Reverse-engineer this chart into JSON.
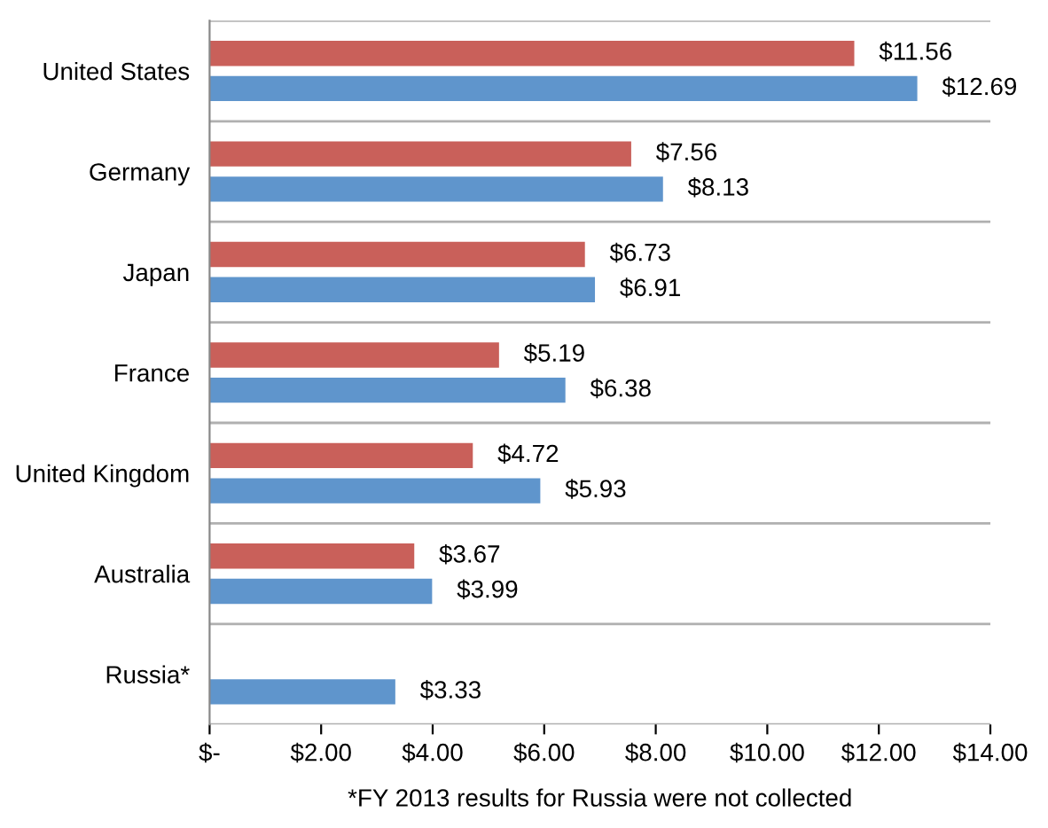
{
  "chart_data": {
    "type": "bar",
    "orientation": "horizontal",
    "categories": [
      "United States",
      "Germany",
      "Japan",
      "France",
      "United Kingdom",
      "Australia",
      "Russia*"
    ],
    "series": [
      {
        "color": "#c9605a",
        "values": [
          11.56,
          7.56,
          6.73,
          5.19,
          4.72,
          3.67,
          null
        ],
        "value_labels": [
          "$11.56",
          "$7.56",
          "$6.73",
          "$5.19",
          "$4.72",
          "$3.67",
          null
        ]
      },
      {
        "color": "#5f95cc",
        "values": [
          12.69,
          8.13,
          6.91,
          6.38,
          5.93,
          3.99,
          3.33
        ],
        "value_labels": [
          "$12.69",
          "$8.13",
          "$6.91",
          "$6.38",
          "$5.93",
          "$3.99",
          "$3.33"
        ]
      }
    ],
    "xlim": [
      0,
      14
    ],
    "xticks": [
      {
        "value": 0,
        "label": "$-"
      },
      {
        "value": 2,
        "label": "$2.00"
      },
      {
        "value": 4,
        "label": "$4.00"
      },
      {
        "value": 6,
        "label": "$6.00"
      },
      {
        "value": 8,
        "label": "$8.00"
      },
      {
        "value": 10,
        "label": "$10.00"
      },
      {
        "value": 12,
        "label": "$12.00"
      },
      {
        "value": 14,
        "label": "$14.00"
      }
    ],
    "grid": "y",
    "annotations": [
      "*FY 2013 results for Russia were not collected"
    ]
  }
}
